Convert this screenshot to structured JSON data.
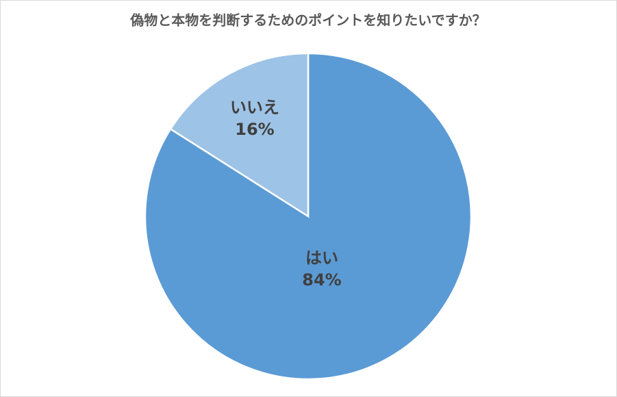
{
  "chart_data": {
    "type": "pie",
    "title": "偽物と本物を判断するためのポイントを知りたいですか？",
    "categories": [
      "はい",
      "いいえ"
    ],
    "values": [
      84,
      16
    ],
    "value_labels": [
      "84%",
      "16%"
    ],
    "colors": [
      "#5b9bd5",
      "#9dc3e6"
    ]
  }
}
